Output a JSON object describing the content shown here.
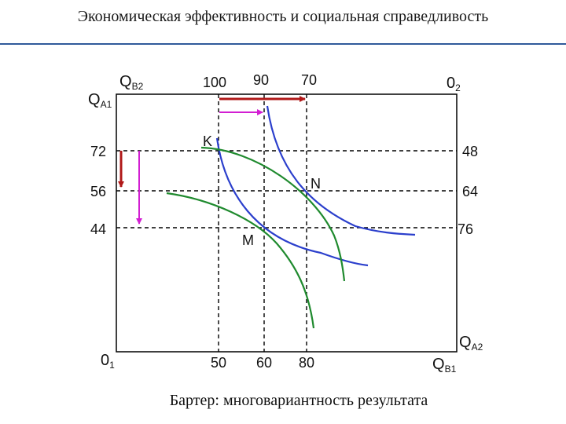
{
  "title": "Экономическая эффективность и социальная справедливость",
  "caption": "Бартер: многовариантность результата",
  "labels": {
    "origin1": "0",
    "origin1_sub": "1",
    "origin2": "0",
    "origin2_sub": "2",
    "qa1": "Q",
    "qa1_sub": "A1",
    "qb2": "Q",
    "qb2_sub": "B2",
    "qa2": "Q",
    "qa2_sub": "A2",
    "qb1": "Q",
    "qb1_sub": "B1",
    "point_k": "K",
    "point_n": "N",
    "point_m": "M"
  },
  "ticks": {
    "left": [
      "72",
      "56",
      "44"
    ],
    "right": [
      "48",
      "64",
      "76"
    ],
    "top": [
      "100",
      "90",
      "70"
    ],
    "bottom": [
      "50",
      "60",
      "80"
    ]
  },
  "colors": {
    "rule": "#2f5a9a",
    "box": "#000000",
    "blue_curves": "#2b3fcc",
    "green_curves": "#1f8a2e",
    "red_arrows": "#b01818",
    "magenta_arrows": "#d21ed2"
  }
}
